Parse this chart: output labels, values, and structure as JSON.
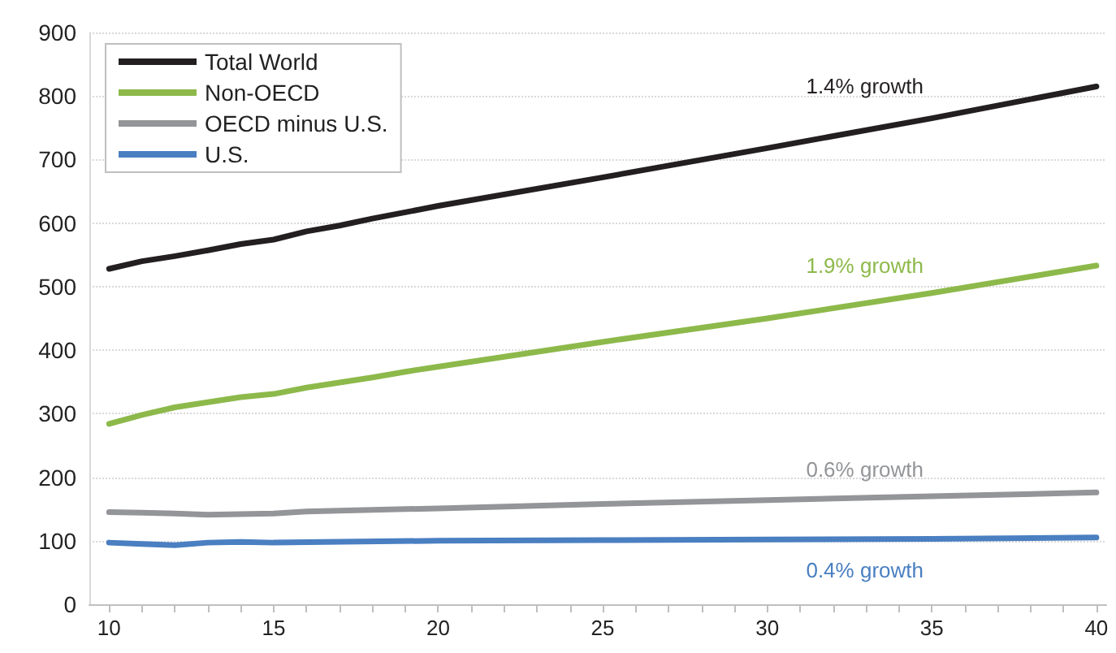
{
  "chart_data": {
    "type": "line",
    "series": [
      {
        "name": "Total World",
        "color": "#231f20",
        "x": [
          10,
          11,
          12,
          13,
          14,
          15,
          16,
          17,
          18,
          19,
          20,
          25,
          30,
          35,
          40
        ],
        "values": [
          528,
          540,
          548,
          557,
          567,
          574,
          587,
          596,
          607,
          617,
          627,
          672,
          718,
          765,
          815
        ]
      },
      {
        "name": "Non-OECD",
        "color": "#8db94b",
        "x": [
          10,
          11,
          12,
          13,
          14,
          15,
          16,
          17,
          18,
          19,
          20,
          25,
          30,
          35,
          40
        ],
        "values": [
          284,
          298,
          310,
          318,
          326,
          331,
          341,
          349,
          357,
          366,
          374,
          413,
          450,
          490,
          533
        ]
      },
      {
        "name": "OECD minus U.S.",
        "color": "#939598",
        "x": [
          10,
          11,
          12,
          13,
          14,
          15,
          16,
          20,
          25,
          30,
          35,
          40
        ],
        "values": [
          145,
          144,
          143,
          141,
          142,
          143,
          146,
          151,
          158,
          164,
          170,
          176
        ]
      },
      {
        "name": "U.S.",
        "color": "#4a7fc1",
        "x": [
          10,
          11,
          12,
          13,
          14,
          15,
          20,
          25,
          30,
          35,
          40
        ],
        "values": [
          97,
          95,
          93,
          97,
          98,
          97,
          100,
          101,
          102,
          103,
          105
        ]
      }
    ],
    "annotations": [
      "1.4% growth",
      "1.9% growth",
      "0.6% growth",
      "0.4% growth"
    ],
    "xlim": [
      9.4,
      40.3
    ],
    "xticks": [
      10,
      {
        "value": 11,
        "label": null
      },
      {
        "value": 12,
        "label": null
      },
      {
        "value": 13,
        "label": null
      },
      {
        "value": 14,
        "label": null
      },
      15,
      {
        "value": 16,
        "label": null
      },
      {
        "value": 17,
        "label": null
      },
      {
        "value": 18,
        "label": null
      },
      {
        "value": 19,
        "label": null
      },
      20,
      {
        "value": 21,
        "label": null
      },
      {
        "value": 22,
        "label": null
      },
      {
        "value": 23,
        "label": null
      },
      {
        "value": 24,
        "label": null
      },
      25,
      {
        "value": 26,
        "label": null
      },
      {
        "value": 27,
        "label": null
      },
      {
        "value": 28,
        "label": null
      },
      {
        "value": 29,
        "label": null
      },
      30,
      {
        "value": 31,
        "label": null
      },
      {
        "value": 32,
        "label": null
      },
      {
        "value": 33,
        "label": null
      },
      {
        "value": 34,
        "label": null
      },
      35,
      {
        "value": 36,
        "label": null
      },
      {
        "value": 37,
        "label": null
      },
      {
        "value": 38,
        "label": null
      },
      {
        "value": 39,
        "label": null
      },
      40
    ],
    "ylim": [
      0,
      900
    ],
    "yticks": [
      0,
      100,
      200,
      300,
      400,
      500,
      600,
      700,
      800,
      900
    ],
    "grid": "y",
    "legend": "top left",
    "marker": "none",
    "line_style": "solid"
  }
}
